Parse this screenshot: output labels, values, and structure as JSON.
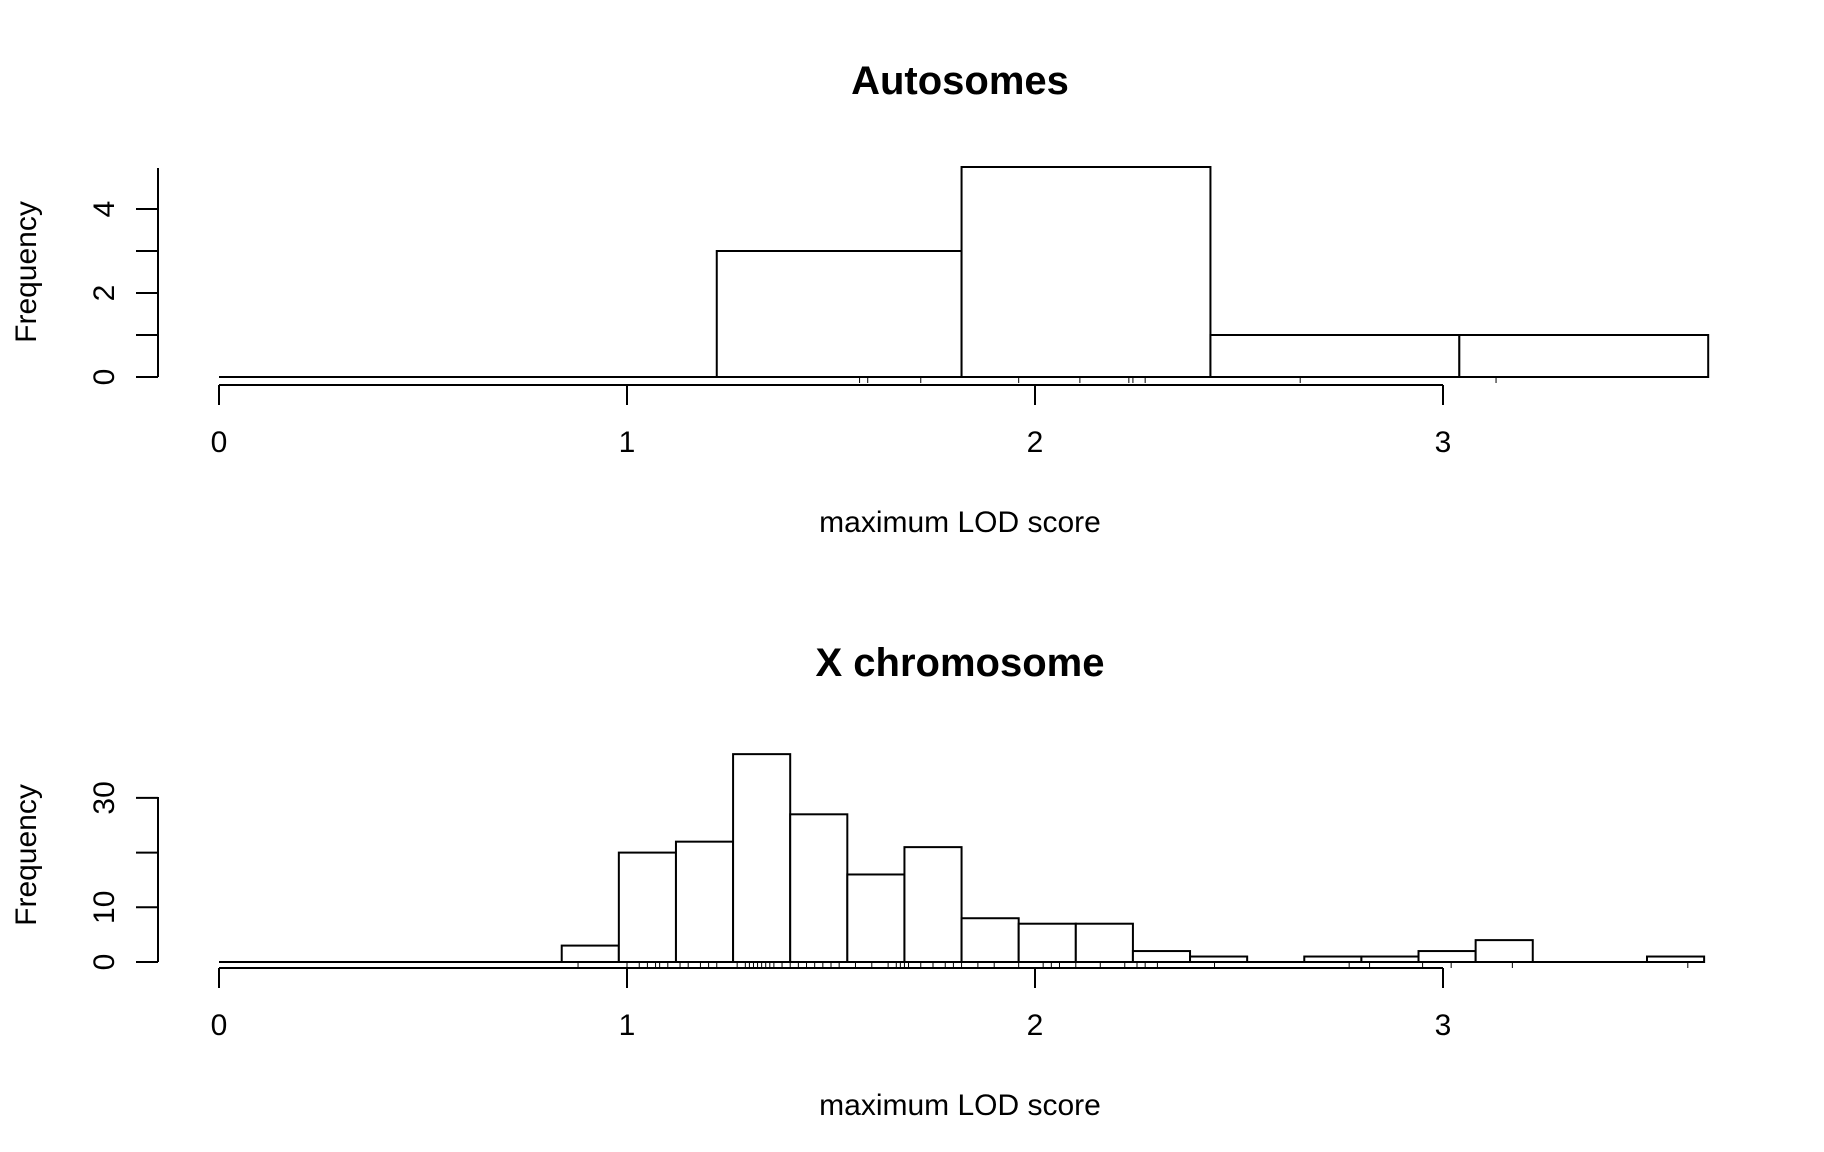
{
  "chart_data": [
    {
      "type": "bar",
      "title": "Autosomes",
      "xlabel": "maximum LOD score",
      "ylabel": "Frequency",
      "xlim": [
        0,
        3.6
      ],
      "ylim": [
        0,
        5
      ],
      "x_ticks": [
        "0",
        "1",
        "2",
        "3"
      ],
      "y_ticks": [
        "0",
        "2",
        "4"
      ],
      "bins": [
        {
          "start": 1.22,
          "end": 1.82,
          "count": 3
        },
        {
          "start": 1.82,
          "end": 2.43,
          "count": 5
        },
        {
          "start": 2.43,
          "end": 3.04,
          "count": 1
        },
        {
          "start": 3.04,
          "end": 3.65,
          "count": 1
        }
      ],
      "rug": [
        1.57,
        1.59,
        1.72,
        1.96,
        2.11,
        2.23,
        2.24,
        2.27,
        2.65,
        3.13
      ]
    },
    {
      "type": "bar",
      "title": "X chromosome",
      "xlabel": "maximum LOD score",
      "ylabel": "Frequency",
      "xlim": [
        0,
        3.6
      ],
      "ylim": [
        0,
        40
      ],
      "x_ticks": [
        "0",
        "1",
        "2",
        "3"
      ],
      "y_ticks": [
        "0",
        "10",
        "30"
      ],
      "bins": [
        {
          "start": 0.84,
          "end": 0.98,
          "count": 3
        },
        {
          "start": 0.98,
          "end": 1.12,
          "count": 20
        },
        {
          "start": 1.12,
          "end": 1.26,
          "count": 22
        },
        {
          "start": 1.26,
          "end": 1.4,
          "count": 38
        },
        {
          "start": 1.4,
          "end": 1.54,
          "count": 27
        },
        {
          "start": 1.54,
          "end": 1.68,
          "count": 16
        },
        {
          "start": 1.68,
          "end": 1.82,
          "count": 21
        },
        {
          "start": 1.82,
          "end": 1.96,
          "count": 8
        },
        {
          "start": 1.96,
          "end": 2.1,
          "count": 7
        },
        {
          "start": 2.1,
          "end": 2.24,
          "count": 7
        },
        {
          "start": 2.24,
          "end": 2.38,
          "count": 2
        },
        {
          "start": 2.38,
          "end": 2.52,
          "count": 1
        },
        {
          "start": 2.66,
          "end": 2.8,
          "count": 1
        },
        {
          "start": 2.8,
          "end": 2.94,
          "count": 1
        },
        {
          "start": 2.94,
          "end": 3.08,
          "count": 2
        },
        {
          "start": 3.08,
          "end": 3.22,
          "count": 4
        },
        {
          "start": 3.5,
          "end": 3.64,
          "count": 1
        }
      ],
      "rug": [
        0.88,
        1.0,
        1.03,
        1.05,
        1.07,
        1.08,
        1.1,
        1.13,
        1.15,
        1.18,
        1.2,
        1.22,
        1.27,
        1.29,
        1.3,
        1.31,
        1.32,
        1.33,
        1.34,
        1.35,
        1.36,
        1.38,
        1.4,
        1.42,
        1.44,
        1.46,
        1.48,
        1.5,
        1.52,
        1.56,
        1.6,
        1.64,
        1.66,
        1.67,
        1.68,
        1.69,
        1.72,
        1.75,
        1.78,
        1.8,
        1.82,
        1.86,
        1.9,
        1.96,
        2.02,
        2.04,
        2.06,
        2.1,
        2.16,
        2.22,
        2.25,
        2.27,
        2.3,
        2.44,
        2.77,
        2.82,
        2.95,
        3.02,
        3.17,
        3.6
      ]
    }
  ]
}
